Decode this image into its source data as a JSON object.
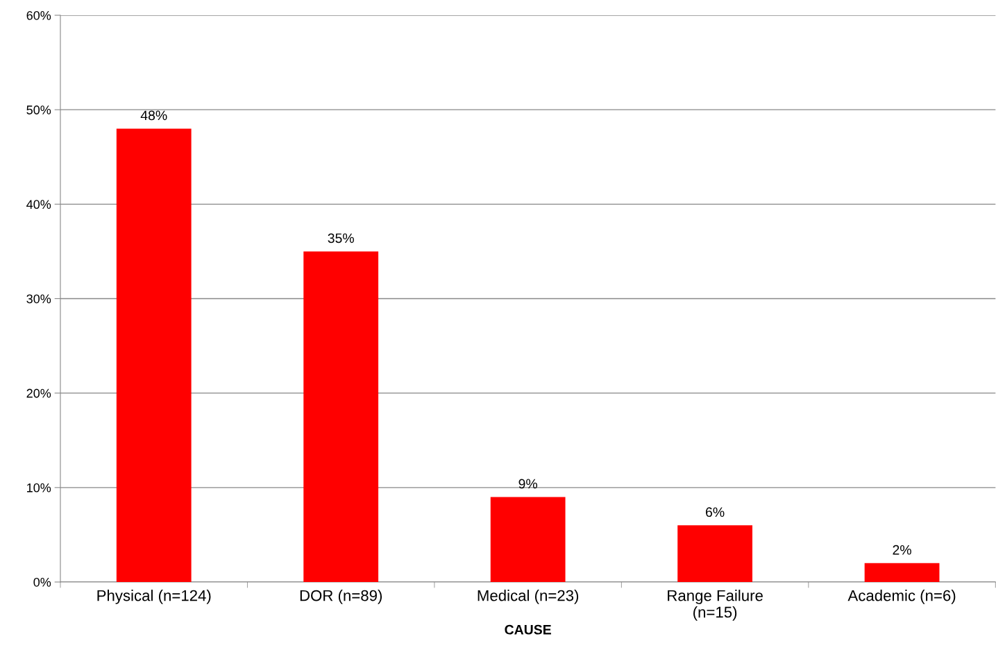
{
  "chart_data": {
    "type": "bar",
    "xlabel": "CAUSE",
    "categories": [
      "Physical (n=124)",
      "DOR (n=89)",
      "Medical (n=23)",
      "Range Failure\n(n=15)",
      "Academic (n=6)"
    ],
    "values": [
      48,
      35,
      9,
      6,
      2
    ],
    "value_labels": [
      "48%",
      "35%",
      "9%",
      "6%",
      "2%"
    ],
    "color": "#ff0000",
    "ylim": [
      0,
      60
    ],
    "yticks": [
      {
        "value": 0,
        "label": "0%"
      },
      {
        "value": 10,
        "label": "10%"
      },
      {
        "value": 20,
        "label": "20%"
      },
      {
        "value": 30,
        "label": "30%"
      },
      {
        "value": 40,
        "label": "40%"
      },
      {
        "value": 50,
        "label": "50%"
      },
      {
        "value": 60,
        "label": "60%"
      }
    ],
    "grid": "y",
    "legend": false
  }
}
